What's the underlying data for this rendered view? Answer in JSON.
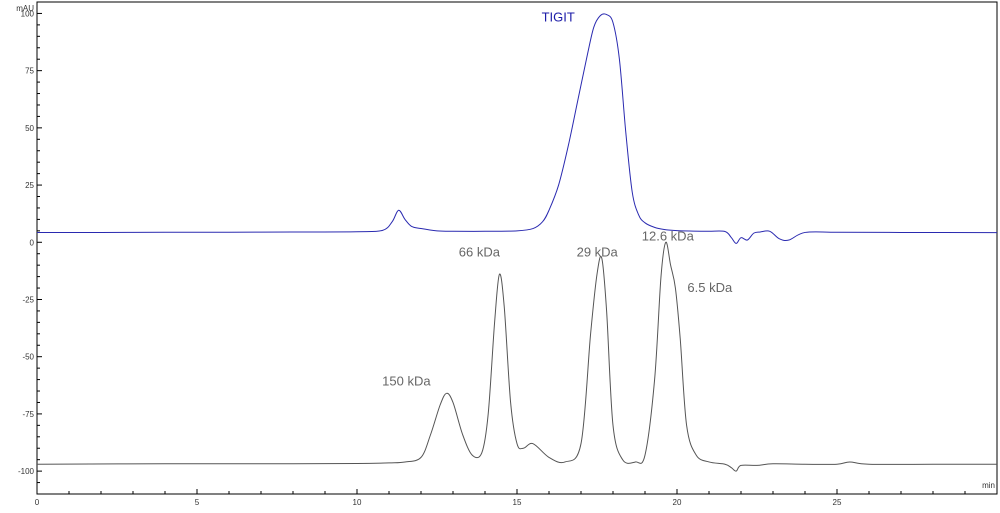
{
  "chart_data": {
    "type": "line",
    "title": "",
    "xlabel": "",
    "ylabel": "",
    "x_unit": "min",
    "y_unit": "mAU",
    "xlim": [
      0,
      30
    ],
    "ylim": [
      -110,
      105
    ],
    "x_ticks": [
      0,
      5,
      10,
      15,
      20,
      25
    ],
    "x_tick_labels": [
      "0",
      "5",
      "10",
      "15",
      "20",
      "25"
    ],
    "y_ticks": [
      100,
      75,
      50,
      25,
      0,
      -25,
      -50,
      -75,
      -100
    ],
    "y_tick_labels": [
      "100",
      "75",
      "50",
      "25",
      "0",
      "-25",
      "-50",
      "-75",
      "-100"
    ],
    "grid": false,
    "legend": "none",
    "series": [
      {
        "color": "#2a2ab0",
        "x": [
          0,
          2,
          4,
          6,
          8,
          10,
          10.8,
          11.1,
          11.3,
          11.5,
          11.7,
          12.0,
          12.5,
          13.0,
          14.0,
          15.0,
          15.5,
          15.8,
          16.0,
          16.3,
          16.6,
          16.9,
          17.2,
          17.4,
          17.6,
          17.8,
          18.0,
          18.2,
          18.4,
          18.6,
          18.8,
          19.0,
          19.3,
          19.6,
          20.0,
          20.5,
          21.0,
          21.5,
          21.7,
          21.85,
          22.0,
          22.2,
          22.4,
          22.6,
          22.9,
          23.2,
          23.5,
          24.0,
          25.0,
          27.0,
          30.0
        ],
        "y": [
          4.3,
          4.3,
          4.4,
          4.4,
          4.5,
          4.6,
          5.2,
          9.0,
          14.0,
          10.0,
          7.0,
          6.0,
          5.0,
          4.8,
          4.8,
          5.0,
          6.0,
          9.0,
          14.0,
          25.0,
          42.0,
          62.0,
          82.0,
          94.0,
          99.0,
          99.5,
          96.0,
          80.0,
          48.0,
          22.0,
          12.0,
          8.5,
          6.5,
          5.6,
          5.1,
          4.9,
          4.8,
          4.7,
          2.0,
          -0.5,
          2.0,
          1.0,
          4.0,
          4.5,
          4.8,
          1.5,
          1.0,
          4.3,
          4.4,
          4.3,
          4.2
        ]
      },
      {
        "color": "#555555",
        "x": [
          0,
          4,
          8,
          10,
          11,
          11.5,
          12.0,
          12.3,
          12.6,
          12.8,
          13.0,
          13.3,
          13.6,
          13.9,
          14.1,
          14.3,
          14.45,
          14.6,
          14.8,
          15.0,
          15.2,
          15.5,
          16.0,
          16.5,
          17.0,
          17.3,
          17.5,
          17.65,
          17.8,
          18.0,
          18.3,
          18.7,
          19.0,
          19.3,
          19.5,
          19.65,
          19.8,
          19.95,
          20.1,
          20.3,
          20.6,
          21.0,
          21.5,
          21.7,
          21.85,
          22.0,
          22.5,
          23.0,
          24.0,
          25.0,
          25.4,
          26.0,
          28.0,
          30.0
        ],
        "y": [
          -97.0,
          -96.8,
          -96.8,
          -96.7,
          -96.4,
          -96.0,
          -94.0,
          -84.0,
          -71.0,
          -66.0,
          -70.0,
          -84.0,
          -93.0,
          -92.0,
          -75.0,
          -35.0,
          -14.0,
          -28.0,
          -70.0,
          -88.0,
          -90.0,
          -88.0,
          -94.0,
          -96.0,
          -88.0,
          -40.0,
          -14.0,
          -7.0,
          -30.0,
          -80.0,
          -95.0,
          -96.0,
          -93.0,
          -60.0,
          -15.0,
          0.0,
          -10.0,
          -20.0,
          -42.0,
          -80.0,
          -93.0,
          -96.0,
          -97.0,
          -98.5,
          -100.0,
          -97.5,
          -97.5,
          -96.8,
          -97.0,
          -97.0,
          -96.0,
          -97.0,
          -97.0,
          -97.0
        ]
      }
    ],
    "annotations": [
      {
        "text": "TIGIT",
        "x": 17.6,
        "y": 99.5,
        "color": "#1c1ca8"
      },
      {
        "text": "150 kDa",
        "x": 12.8,
        "y": -66.0,
        "color": "#666666"
      },
      {
        "text": "66 kDa",
        "x": 14.45,
        "y": -14.0,
        "color": "#666666"
      },
      {
        "text": "29 kDa",
        "x": 17.65,
        "y": -7.0,
        "color": "#666666"
      },
      {
        "text": "12.6 kDa",
        "x": 19.65,
        "y": 0.0,
        "color": "#666666"
      },
      {
        "text": "6.5 kDa",
        "x": 19.95,
        "y": -20.0,
        "color": "#666666"
      }
    ]
  }
}
